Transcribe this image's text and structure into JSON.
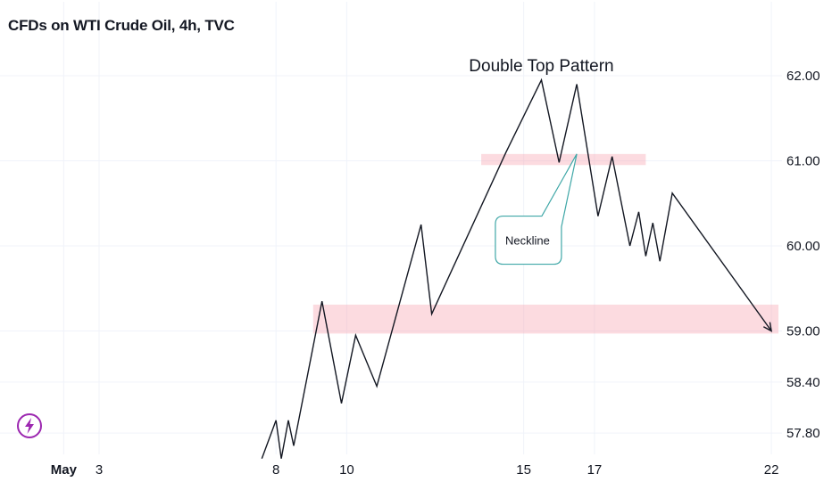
{
  "header": {
    "title": "CFDs on WTI Crude Oil, 4h, TVC"
  },
  "colors": {
    "zone": "#f7a1ad",
    "line": "#131722",
    "callout_border": "#3fa7a7",
    "logo": "#9c27b0",
    "grid": "#f0f3fa"
  },
  "icons": {
    "logo": "lightning-bolt-icon"
  },
  "chart_data": {
    "type": "line",
    "title": "CFDs on WTI Crude Oil, 4h, TVC",
    "xlabel": "",
    "ylabel": "",
    "x_unit": "calendar day of May (2 = first day, 'May')",
    "xlim": [
      0.2,
      22.3
    ],
    "ylim": [
      57.55,
      62.45
    ],
    "y_ticks": [
      {
        "value": 62.0,
        "label": "62.00"
      },
      {
        "value": 61.0,
        "label": "61.00"
      },
      {
        "value": 60.0,
        "label": "60.00"
      },
      {
        "value": 59.0,
        "label": "59.00"
      },
      {
        "value": 58.4,
        "label": "58.40"
      },
      {
        "value": 57.8,
        "label": "57.80"
      }
    ],
    "x_ticks": [
      {
        "value": 2,
        "label": "May",
        "bold": true
      },
      {
        "value": 3,
        "label": "3"
      },
      {
        "value": 8,
        "label": "8"
      },
      {
        "value": 10,
        "label": "10"
      },
      {
        "value": 15,
        "label": "15"
      },
      {
        "value": 17,
        "label": "17"
      },
      {
        "value": 22,
        "label": "22"
      }
    ],
    "grid": true,
    "series": [
      {
        "points": [
          [
            7.6,
            57.5
          ],
          [
            8.0,
            57.95
          ],
          [
            8.15,
            57.5
          ],
          [
            8.35,
            57.95
          ],
          [
            8.5,
            57.65
          ],
          [
            9.3,
            59.35
          ],
          [
            9.85,
            58.15
          ],
          [
            10.25,
            58.95
          ],
          [
            10.85,
            58.35
          ],
          [
            12.1,
            60.25
          ],
          [
            12.4,
            59.2
          ],
          [
            14.5,
            61.1
          ],
          [
            15.5,
            61.95
          ],
          [
            16.0,
            60.98
          ],
          [
            16.5,
            61.9
          ],
          [
            17.1,
            60.35
          ],
          [
            17.5,
            61.05
          ],
          [
            18.0,
            60.0
          ],
          [
            18.25,
            60.4
          ],
          [
            18.45,
            59.88
          ],
          [
            18.65,
            60.27
          ],
          [
            18.85,
            59.82
          ],
          [
            19.2,
            60.62
          ],
          [
            22.0,
            59.0
          ]
        ]
      }
    ],
    "zones": [
      {
        "x0": 13.8,
        "x1": 18.45,
        "y0": 60.95,
        "y1": 61.08
      },
      {
        "x0": 9.05,
        "x1": 22.2,
        "y0": 58.97,
        "y1": 59.31
      }
    ],
    "annotations": {
      "pattern_label": {
        "text": "Double Top Pattern",
        "x": 15.5,
        "y": 62.05
      },
      "callout": {
        "text": "Neckline",
        "x": 14.2,
        "y": 60.35,
        "pointer_x": 16.5,
        "pointer_y": 61.08
      }
    }
  }
}
